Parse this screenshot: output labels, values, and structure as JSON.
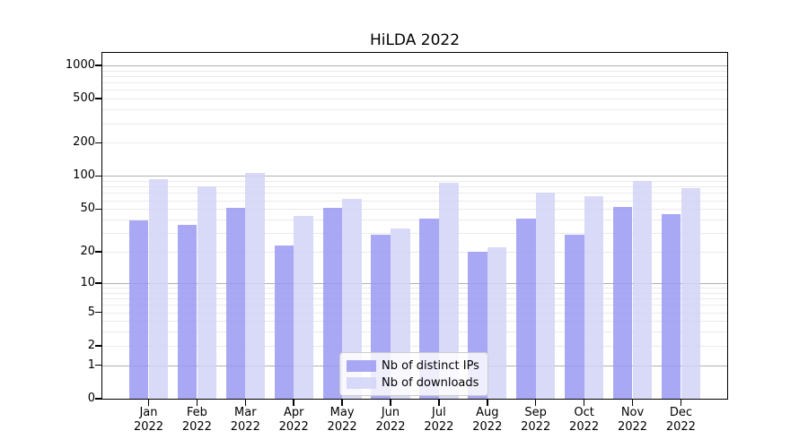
{
  "title": "HiLDA 2022",
  "chart_data": {
    "type": "bar",
    "title": "HiLDA 2022",
    "categories": [
      "Jan",
      "Feb",
      "Mar",
      "Apr",
      "May",
      "Jun",
      "Jul",
      "Aug",
      "Sep",
      "Oct",
      "Nov",
      "Dec"
    ],
    "category_year": "2022",
    "series": [
      {
        "name": "Nb of distinct IPs",
        "color": "#9999f2",
        "values": [
          39,
          36,
          51,
          23,
          51,
          29,
          41,
          20,
          41,
          29,
          52,
          45
        ]
      },
      {
        "name": "Nb of downloads",
        "color": "#d2d2f7",
        "values": [
          93,
          80,
          106,
          43,
          62,
          33,
          86,
          22,
          71,
          66,
          90,
          78
        ]
      }
    ],
    "y_scale": "log1p",
    "ylim": [
      0,
      1296
    ],
    "y_ticks": [
      1000,
      500,
      200,
      100,
      50,
      20,
      10,
      5,
      2,
      1,
      0
    ],
    "y_gridlines_major": [
      1,
      10,
      100,
      1000
    ],
    "y_gridlines_minor": [
      2,
      3,
      4,
      5,
      6,
      7,
      8,
      9,
      20,
      30,
      40,
      50,
      60,
      70,
      80,
      90,
      200,
      300,
      400,
      500,
      600,
      700,
      800,
      900
    ],
    "grid": true,
    "bar_opacity": 0.85,
    "legend": {
      "position": "lower center",
      "items": [
        "Nb of distinct IPs",
        "Nb of downloads"
      ]
    }
  },
  "colors": {
    "axis": "#000000",
    "grid_major": "#b0b0b0",
    "grid_minor": "#eaeaea",
    "background": "#ffffff",
    "legend_border": "#cccccc"
  }
}
